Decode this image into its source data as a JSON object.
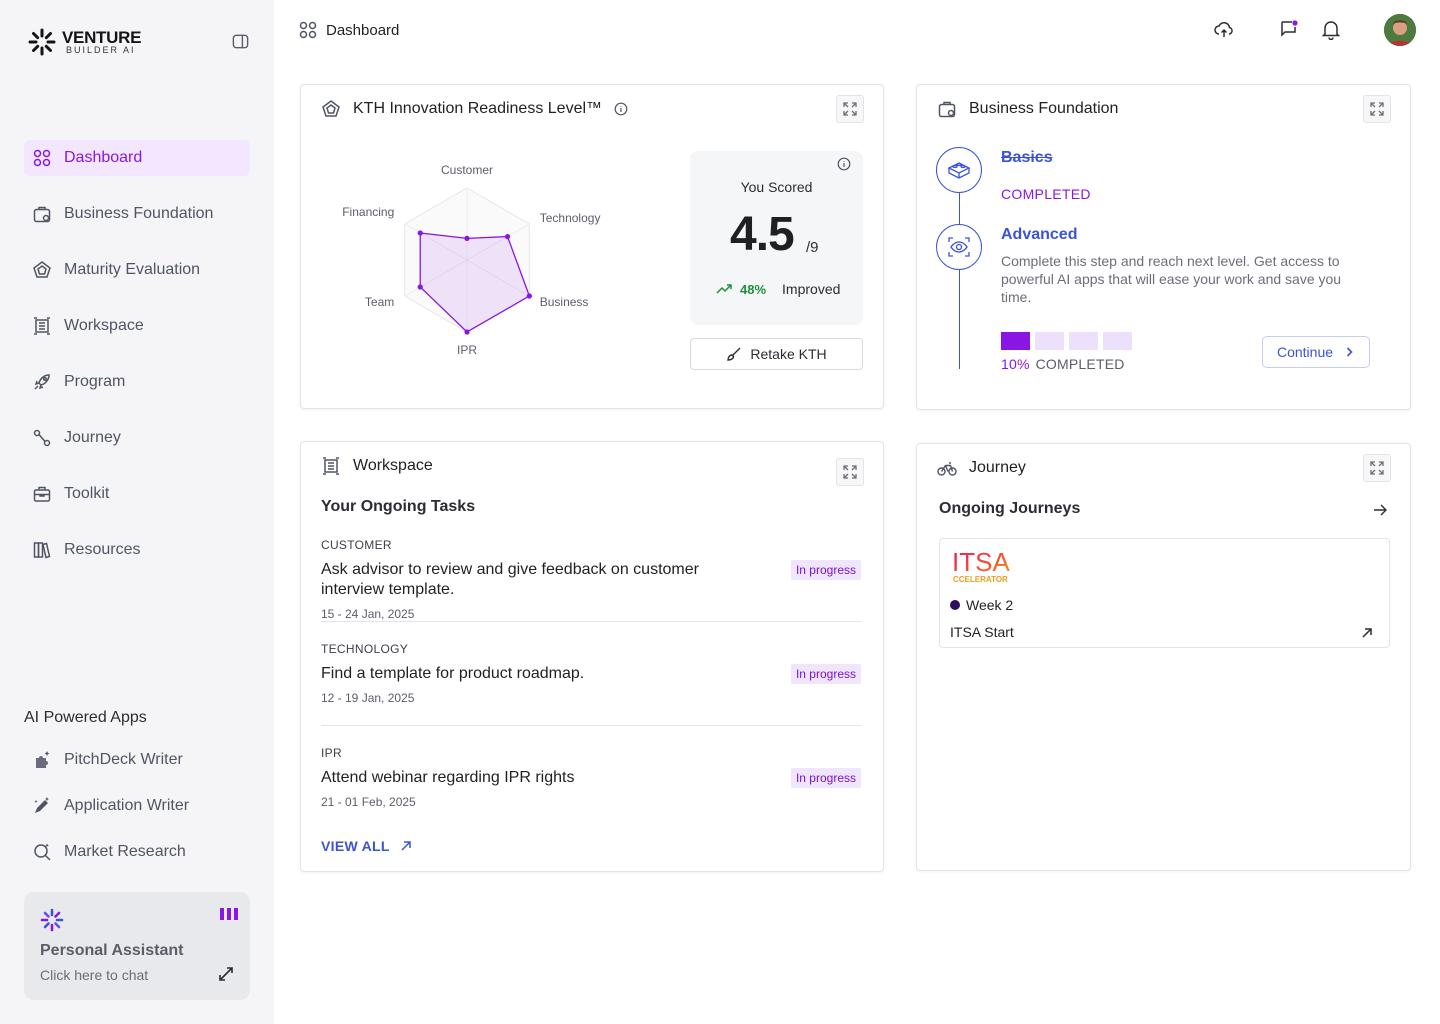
{
  "brand": {
    "name_line1": "VENTURE",
    "name_line2": "BUILDER AI"
  },
  "sidebar": {
    "items": [
      {
        "label": "Dashboard",
        "icon": "grid-icon",
        "active": true
      },
      {
        "label": "Business Foundation",
        "icon": "briefcase-icon",
        "active": false
      },
      {
        "label": "Maturity Evaluation",
        "icon": "pentagon-icon",
        "active": false
      },
      {
        "label": "Workspace",
        "icon": "workspace-icon",
        "active": false
      },
      {
        "label": "Program",
        "icon": "rocket-icon",
        "active": false
      },
      {
        "label": "Journey",
        "icon": "route-icon",
        "active": false
      },
      {
        "label": "Toolkit",
        "icon": "toolbox-icon",
        "active": false
      },
      {
        "label": "Resources",
        "icon": "books-icon",
        "active": false
      }
    ],
    "apps_title": "AI Powered Apps",
    "apps": [
      {
        "label": "PitchDeck Writer",
        "icon": "puzzle-sparkle-icon"
      },
      {
        "label": "Application Writer",
        "icon": "pen-sparkle-icon"
      },
      {
        "label": "Market Research",
        "icon": "search-sparkle-icon"
      }
    ],
    "assistant": {
      "title": "Personal Assistant",
      "subtitle": "Click here to chat"
    }
  },
  "topbar": {
    "breadcrumb": "Dashboard",
    "icons": [
      "cloud-upload-icon",
      "chat-notification-icon",
      "bell-icon",
      "user-avatar"
    ]
  },
  "kth": {
    "title": "KTH Innovation Readiness Level™",
    "score_label": "You Scored",
    "score": "4.5",
    "score_max": "/9",
    "trend_pct": "48%",
    "trend_label": "Improved",
    "retake_label": "Retake KTH",
    "chart_data": {
      "type": "radar",
      "axes": [
        "Customer",
        "Technology",
        "Business",
        "IPR",
        "Team",
        "Financing"
      ],
      "values": [
        30,
        65,
        100,
        100,
        75,
        75
      ],
      "range": [
        0,
        100
      ],
      "rings": [
        20,
        40,
        60,
        80,
        100
      ],
      "color": "#8a16e6"
    }
  },
  "business_foundation": {
    "title": "Business Foundation",
    "steps": [
      {
        "title": "Basics",
        "status": "COMPLETED"
      },
      {
        "title": "Advanced",
        "description": "Complete this step and reach next level. Get access to powerful AI apps that will ease your work and save you time."
      }
    ],
    "progress_fraction": 0.1,
    "progress_blocks": {
      "filled": 1,
      "total": 4
    },
    "progress_pct": "10%",
    "progress_label": "COMPLETED",
    "continue_label": "Continue"
  },
  "workspace": {
    "title": "Workspace",
    "subtitle": "Your Ongoing Tasks",
    "tasks": [
      {
        "category": "CUSTOMER",
        "text": "Ask advisor to review and give feedback on customer interview template.",
        "date": "15 - 24 Jan, 2025",
        "status": "In progress"
      },
      {
        "category": "TECHNOLOGY",
        "text": "Find a template for product roadmap.",
        "date": "12 - 19 Jan, 2025",
        "status": "In progress"
      },
      {
        "category": "IPR",
        "text": "Attend webinar regarding IPR rights",
        "date": "21 - 01 Feb, 2025",
        "status": "In progress"
      }
    ],
    "view_all": "VIEW ALL"
  },
  "journey": {
    "title": "Journey",
    "subtitle": "Ongoing Journeys",
    "items": [
      {
        "logo_text": "ITSA",
        "logo_sub": "CCELERATOR",
        "week": "Week 2",
        "name": "ITSA Start"
      }
    ]
  },
  "colors": {
    "accent": "#8a16e6",
    "link": "#3b54d6",
    "sidebar_bg": "#f5f5f7",
    "active_bg": "#f2e7ff",
    "success": "#1f8f3a"
  }
}
